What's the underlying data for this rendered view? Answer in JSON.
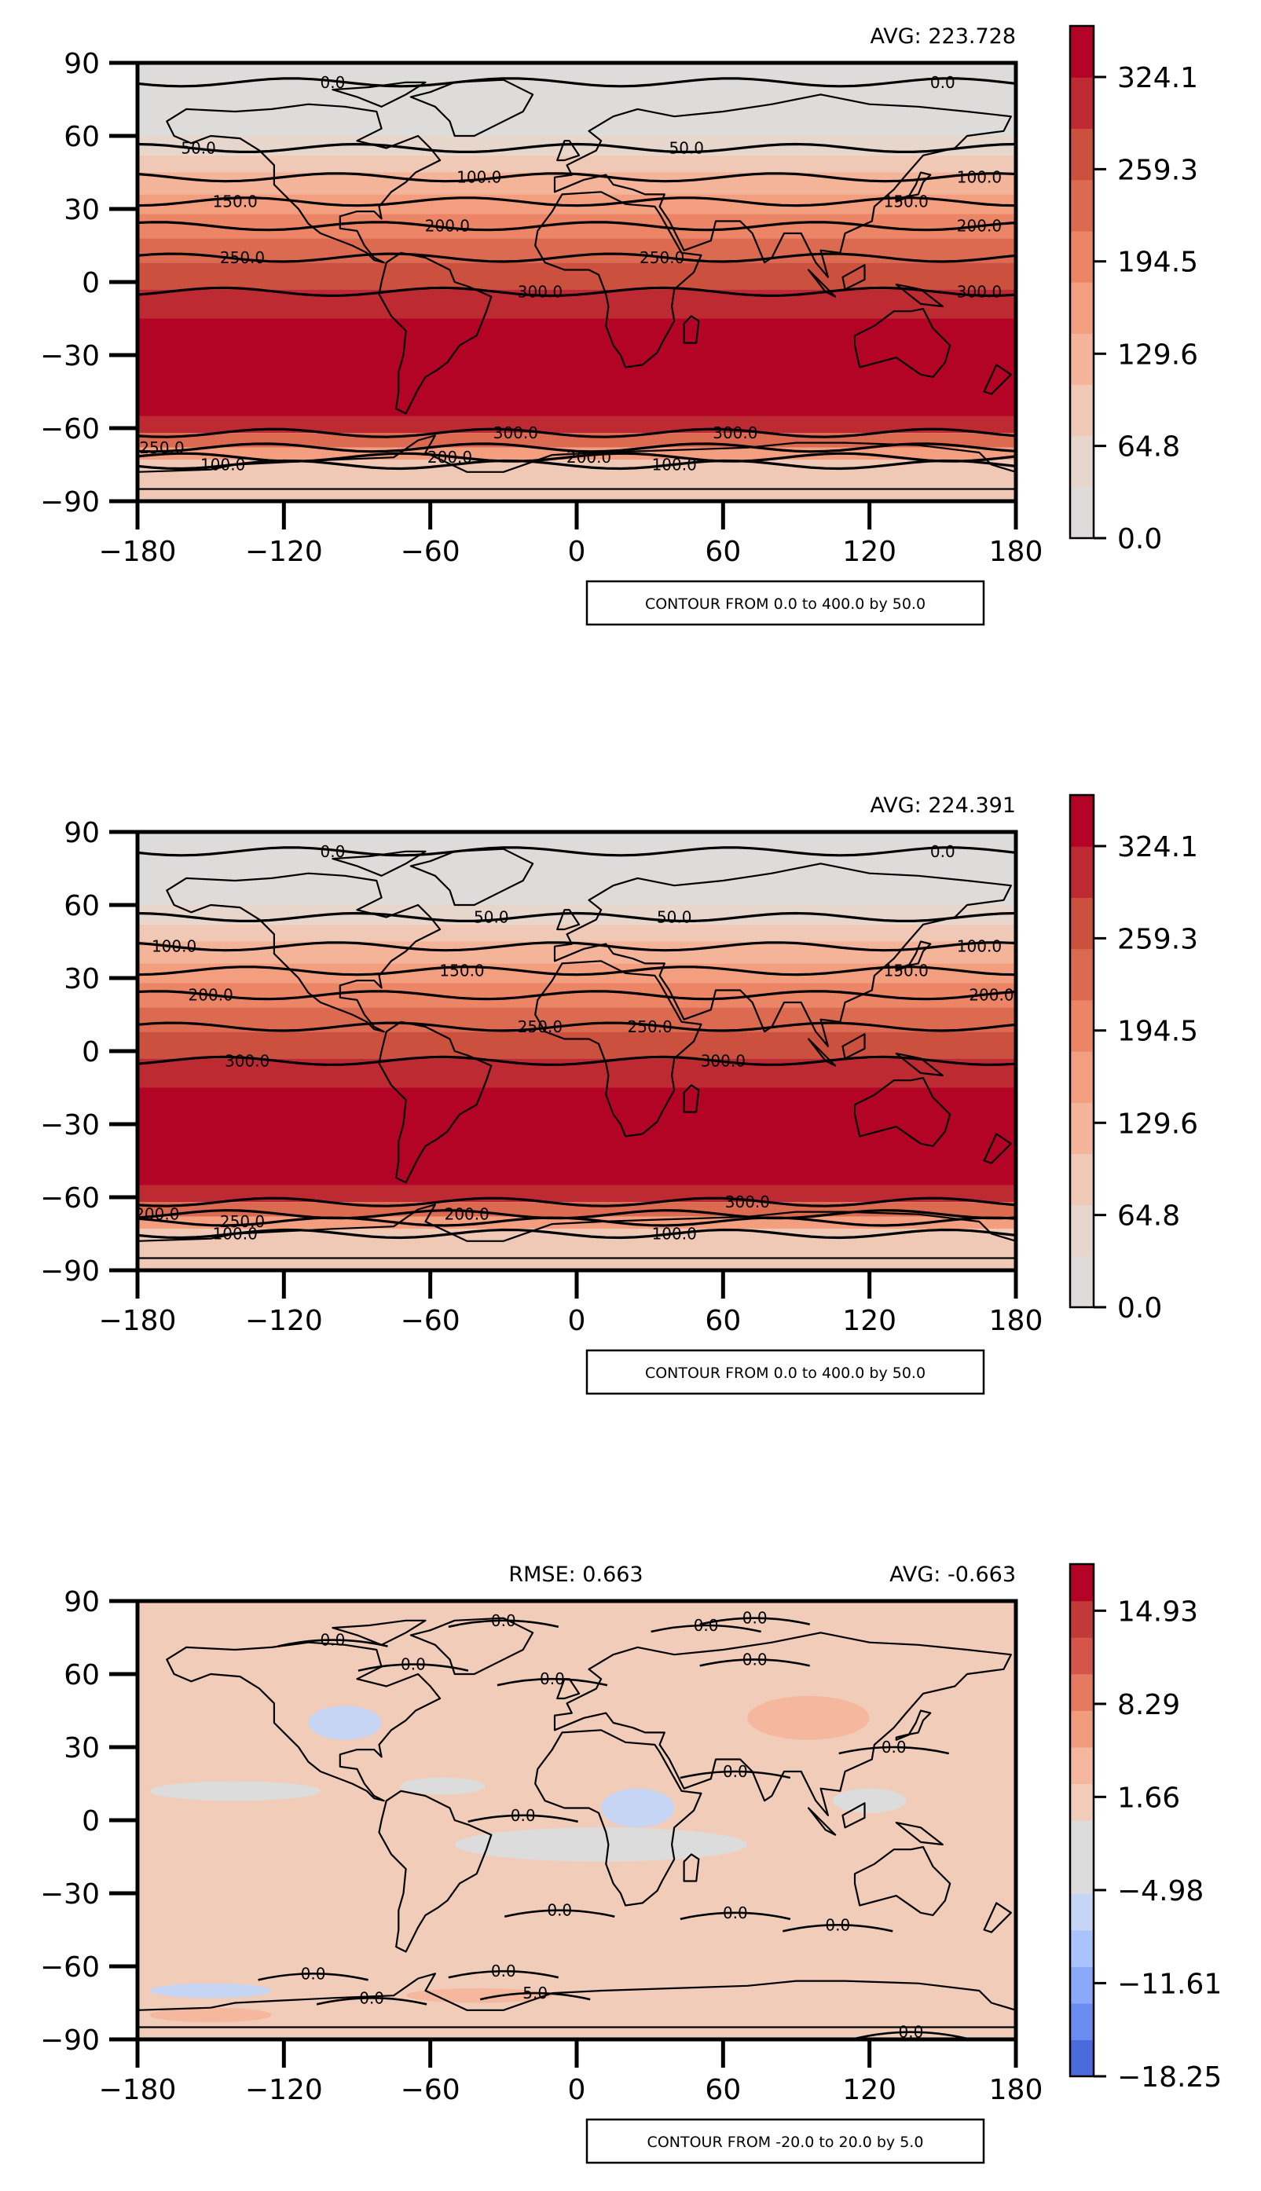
{
  "chart_data": [
    {
      "type": "contour-map",
      "stats": [
        {
          "label": "AVG: 223.728",
          "pos": "right"
        }
      ],
      "contour_note": "CONTOUR FROM 0.0 to 400.0 by 50.0",
      "xlim": [
        -180,
        180
      ],
      "ylim": [
        -90,
        90
      ],
      "xticks": [
        -180,
        -120,
        -60,
        0,
        60,
        120,
        180
      ],
      "yticks": [
        90,
        60,
        30,
        0,
        -30,
        -60,
        -90
      ],
      "colorbar": {
        "min": 0.0,
        "max": 360.0,
        "ticks": [
          "0.0",
          "64.8",
          "129.6",
          "194.5",
          "259.3",
          "324.1"
        ],
        "tick_values": [
          0.0,
          64.8,
          129.6,
          194.5,
          259.3,
          324.1
        ],
        "colors": [
          "#dddcdb",
          "#e6d6cc",
          "#efc8b6",
          "#f4b49a",
          "#f49e80",
          "#ec8466",
          "#dc6a50",
          "#cc503e",
          "#bd2a31",
          "#b40426"
        ]
      },
      "bands": [
        {
          "lat_top": 90,
          "lat_bottom": 75,
          "value": 10
        },
        {
          "lat_top": 75,
          "lat_bottom": 60,
          "value": 30
        },
        {
          "lat_top": 60,
          "lat_bottom": 52,
          "value": 60
        },
        {
          "lat_top": 52,
          "lat_bottom": 45,
          "value": 90
        },
        {
          "lat_top": 45,
          "lat_bottom": 36,
          "value": 130
        },
        {
          "lat_top": 36,
          "lat_bottom": 28,
          "value": 165
        },
        {
          "lat_top": 28,
          "lat_bottom": 18,
          "value": 200
        },
        {
          "lat_top": 18,
          "lat_bottom": 8,
          "value": 235
        },
        {
          "lat_top": 8,
          "lat_bottom": -3,
          "value": 275
        },
        {
          "lat_top": -3,
          "lat_bottom": -15,
          "value": 305
        },
        {
          "lat_top": -15,
          "lat_bottom": -55,
          "value": 345
        },
        {
          "lat_top": -55,
          "lat_bottom": -62,
          "value": 300
        },
        {
          "lat_top": -62,
          "lat_bottom": -68,
          "value": 240
        },
        {
          "lat_top": -68,
          "lat_bottom": -73,
          "value": 170
        },
        {
          "lat_top": -73,
          "lat_bottom": -90,
          "value": 95
        }
      ],
      "contour_lines": [
        {
          "lat": 82,
          "label": "0.0",
          "label_lons": [
            -100,
            150
          ]
        },
        {
          "lat": 55,
          "label": "50.0",
          "label_lons": [
            -155,
            45
          ]
        },
        {
          "lat": 43,
          "label": "100.0",
          "label_lons": [
            -40,
            165
          ]
        },
        {
          "lat": 33,
          "label": "150.0",
          "label_lons": [
            -140,
            135
          ]
        },
        {
          "lat": 23,
          "label": "200.0",
          "label_lons": [
            -53,
            165
          ]
        },
        {
          "lat": 10,
          "label": "250.0",
          "label_lons": [
            -137,
            35
          ]
        },
        {
          "lat": -4,
          "label": "300.0",
          "label_lons": [
            -15,
            165
          ]
        },
        {
          "lat": -62,
          "label": "300.0",
          "label_lons": [
            -25,
            65
          ]
        },
        {
          "lat": -68,
          "label": "250.0",
          "label_lons": [
            -170
          ]
        },
        {
          "lat": -72,
          "label": "200.0",
          "label_lons": [
            -52,
            5
          ]
        },
        {
          "lat": -75,
          "label": "100.0",
          "label_lons": [
            -145,
            40
          ]
        }
      ]
    },
    {
      "type": "contour-map",
      "stats": [
        {
          "label": "AVG: 224.391",
          "pos": "right"
        }
      ],
      "contour_note": "CONTOUR FROM 0.0 to 400.0 by 50.0",
      "xlim": [
        -180,
        180
      ],
      "ylim": [
        -90,
        90
      ],
      "xticks": [
        -180,
        -120,
        -60,
        0,
        60,
        120,
        180
      ],
      "yticks": [
        90,
        60,
        30,
        0,
        -30,
        -60,
        -90
      ],
      "colorbar": {
        "min": 0.0,
        "max": 360.0,
        "ticks": [
          "0.0",
          "64.8",
          "129.6",
          "194.5",
          "259.3",
          "324.1"
        ],
        "tick_values": [
          0.0,
          64.8,
          129.6,
          194.5,
          259.3,
          324.1
        ],
        "colors": [
          "#dddcdb",
          "#e6d6cc",
          "#efc8b6",
          "#f4b49a",
          "#f49e80",
          "#ec8466",
          "#dc6a50",
          "#cc503e",
          "#bd2a31",
          "#b40426"
        ]
      },
      "bands": [
        {
          "lat_top": 90,
          "lat_bottom": 75,
          "value": 10
        },
        {
          "lat_top": 75,
          "lat_bottom": 60,
          "value": 30
        },
        {
          "lat_top": 60,
          "lat_bottom": 52,
          "value": 60
        },
        {
          "lat_top": 52,
          "lat_bottom": 45,
          "value": 90
        },
        {
          "lat_top": 45,
          "lat_bottom": 36,
          "value": 130
        },
        {
          "lat_top": 36,
          "lat_bottom": 28,
          "value": 165
        },
        {
          "lat_top": 28,
          "lat_bottom": 18,
          "value": 200
        },
        {
          "lat_top": 18,
          "lat_bottom": 8,
          "value": 235
        },
        {
          "lat_top": 8,
          "lat_bottom": -3,
          "value": 275
        },
        {
          "lat_top": -3,
          "lat_bottom": -15,
          "value": 305
        },
        {
          "lat_top": -15,
          "lat_bottom": -55,
          "value": 345
        },
        {
          "lat_top": -55,
          "lat_bottom": -62,
          "value": 300
        },
        {
          "lat_top": -62,
          "lat_bottom": -68,
          "value": 240
        },
        {
          "lat_top": -68,
          "lat_bottom": -73,
          "value": 170
        },
        {
          "lat_top": -73,
          "lat_bottom": -90,
          "value": 95
        }
      ],
      "contour_lines": [
        {
          "lat": 82,
          "label": "0.0",
          "label_lons": [
            -100,
            150
          ]
        },
        {
          "lat": 55,
          "label": "50.0",
          "label_lons": [
            -35,
            40
          ]
        },
        {
          "lat": 43,
          "label": "100.0",
          "label_lons": [
            -165,
            165
          ]
        },
        {
          "lat": 33,
          "label": "150.0",
          "label_lons": [
            -47,
            135
          ]
        },
        {
          "lat": 23,
          "label": "200.0",
          "label_lons": [
            -150,
            170
          ]
        },
        {
          "lat": 10,
          "label": "250.0",
          "label_lons": [
            -15,
            30
          ]
        },
        {
          "lat": -4,
          "label": "300.0",
          "label_lons": [
            -135,
            60
          ]
        },
        {
          "lat": -62,
          "label": "300.0",
          "label_lons": [
            70
          ]
        },
        {
          "lat": -67,
          "label": "200.0",
          "label_lons": [
            -172,
            -45
          ]
        },
        {
          "lat": -70,
          "label": "250.0",
          "label_lons": [
            -137
          ]
        },
        {
          "lat": -75,
          "label": "100.0",
          "label_lons": [
            -140,
            40
          ]
        }
      ]
    },
    {
      "type": "contour-map",
      "stats": [
        {
          "label": "RMSE: 0.663",
          "pos": "center"
        },
        {
          "label": "AVG: -0.663",
          "pos": "right"
        }
      ],
      "contour_note": "CONTOUR FROM -20.0 to 20.0 by 5.0",
      "xlim": [
        -180,
        180
      ],
      "ylim": [
        -90,
        90
      ],
      "xticks": [
        -180,
        -120,
        -60,
        0,
        60,
        120,
        180
      ],
      "yticks": [
        90,
        60,
        30,
        0,
        -30,
        -60,
        -90
      ],
      "colorbar": {
        "min": -18.25,
        "max": 18.25,
        "ticks": [
          "−18.25",
          "−11.61",
          "−4.98",
          "1.66",
          "8.29",
          "14.93"
        ],
        "tick_values": [
          -18.25,
          -11.61,
          -4.98,
          1.66,
          8.29,
          14.93
        ],
        "colors": [
          "#4a6bdc",
          "#6a8cf0",
          "#8aa9f8",
          "#a9c3fc",
          "#c6d5f4",
          "#dcdcdc",
          "#dcdcdc",
          "#f1cdb9",
          "#f5b79e",
          "#f19b7d",
          "#e57a60",
          "#d5554a",
          "#c13a37",
          "#b40426"
        ]
      },
      "base_value": 0.0,
      "patches": [
        {
          "lon": -140,
          "lat": 12,
          "w": 70,
          "h": 8,
          "value": -3
        },
        {
          "lon": -55,
          "lat": 14,
          "w": 35,
          "h": 7,
          "value": -3
        },
        {
          "lon": 10,
          "lat": -10,
          "w": 120,
          "h": 14,
          "value": -3
        },
        {
          "lon": -95,
          "lat": 40,
          "w": 30,
          "h": 14,
          "value": -6
        },
        {
          "lon": 95,
          "lat": 42,
          "w": 50,
          "h": 18,
          "value": 3
        },
        {
          "lon": 25,
          "lat": 5,
          "w": 30,
          "h": 16,
          "value": -6
        },
        {
          "lon": 120,
          "lat": 8,
          "w": 30,
          "h": 10,
          "value": -3
        },
        {
          "lon": -150,
          "lat": -70,
          "w": 50,
          "h": 6,
          "value": -6
        },
        {
          "lon": -40,
          "lat": -72,
          "w": 60,
          "h": 6,
          "value": 4
        },
        {
          "lon": -150,
          "lat": -80,
          "w": 50,
          "h": 6,
          "value": 3
        }
      ],
      "contour_labels": [
        {
          "text": "0.0",
          "lon": -30,
          "lat": 82
        },
        {
          "text": "0.0",
          "lon": 53,
          "lat": 80
        },
        {
          "text": "0.0",
          "lon": 73,
          "lat": 83
        },
        {
          "text": "0.0",
          "lon": -100,
          "lat": 74
        },
        {
          "text": "0.0",
          "lon": -67,
          "lat": 64
        },
        {
          "text": "0.0",
          "lon": 73,
          "lat": 66
        },
        {
          "text": "0.0",
          "lon": -10,
          "lat": 58
        },
        {
          "text": "0.0",
          "lon": 130,
          "lat": 30
        },
        {
          "text": "0.0",
          "lon": 65,
          "lat": 20
        },
        {
          "text": "0.0",
          "lon": -22,
          "lat": 2
        },
        {
          "text": "0.0",
          "lon": -7,
          "lat": -37
        },
        {
          "text": "0.0",
          "lon": 65,
          "lat": -38
        },
        {
          "text": "0.0",
          "lon": 107,
          "lat": -43
        },
        {
          "text": "0.0",
          "lon": -108,
          "lat": -63
        },
        {
          "text": "0.0",
          "lon": -84,
          "lat": -73
        },
        {
          "text": "0.0",
          "lon": -30,
          "lat": -62
        },
        {
          "text": "5.0",
          "lon": -17,
          "lat": -71
        },
        {
          "text": "0.0",
          "lon": 137,
          "lat": -87
        }
      ]
    }
  ]
}
